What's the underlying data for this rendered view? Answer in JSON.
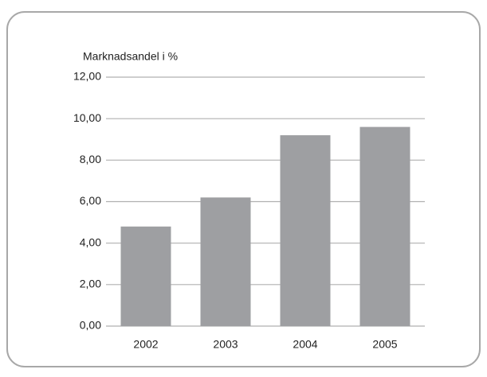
{
  "chart_data": {
    "type": "bar",
    "title": "Marknadsandel i %",
    "categories": [
      "2002",
      "2003",
      "2004",
      "2005"
    ],
    "values": [
      4.8,
      6.2,
      9.2,
      9.6
    ],
    "color": "#9e9fa2",
    "ylim": [
      0,
      12
    ],
    "yticks": [
      {
        "value": 0,
        "label": "0,00"
      },
      {
        "value": 2,
        "label": "2,00"
      },
      {
        "value": 4,
        "label": "4,00"
      },
      {
        "value": 6,
        "label": "6,00"
      },
      {
        "value": 8,
        "label": "8,00"
      },
      {
        "value": 10,
        "label": "10,00"
      },
      {
        "value": 12,
        "label": "12,00"
      }
    ],
    "grid": true
  }
}
